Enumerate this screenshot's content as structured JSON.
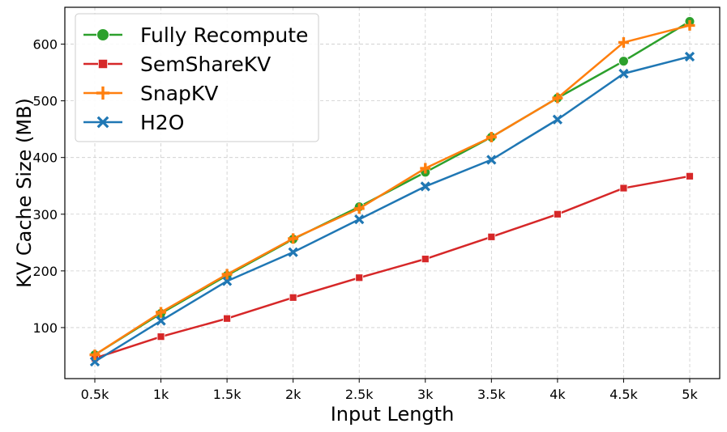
{
  "chart_data": {
    "type": "line",
    "title": "",
    "xlabel": "Input Length",
    "ylabel": "KV Cache Size (MB)",
    "categories": [
      "0.5k",
      "1k",
      "1.5k",
      "2k",
      "2.5k",
      "3k",
      "3.5k",
      "4k",
      "4.5k",
      "5k"
    ],
    "ylim": [
      10,
      665
    ],
    "yticks": [
      100,
      200,
      300,
      400,
      500,
      600
    ],
    "grid": true,
    "legend_position": "top-left",
    "series": [
      {
        "name": "Fully Recompute",
        "color": "#2ca02c",
        "marker": "circle",
        "values": [
          52,
          125,
          192,
          256,
          313,
          374,
          436,
          505,
          570,
          640
        ]
      },
      {
        "name": "SemShareKV",
        "color": "#d62728",
        "marker": "square",
        "values": [
          46,
          84,
          116,
          153,
          188,
          221,
          260,
          300,
          346,
          367
        ]
      },
      {
        "name": "SnapKV",
        "color": "#ff7f0e",
        "marker": "plus",
        "values": [
          52,
          127,
          194,
          257,
          310,
          381,
          436,
          505,
          603,
          633
        ]
      },
      {
        "name": "H2O",
        "color": "#1f77b4",
        "marker": "x",
        "values": [
          40,
          112,
          182,
          233,
          291,
          349,
          396,
          467,
          548,
          578
        ]
      }
    ]
  }
}
